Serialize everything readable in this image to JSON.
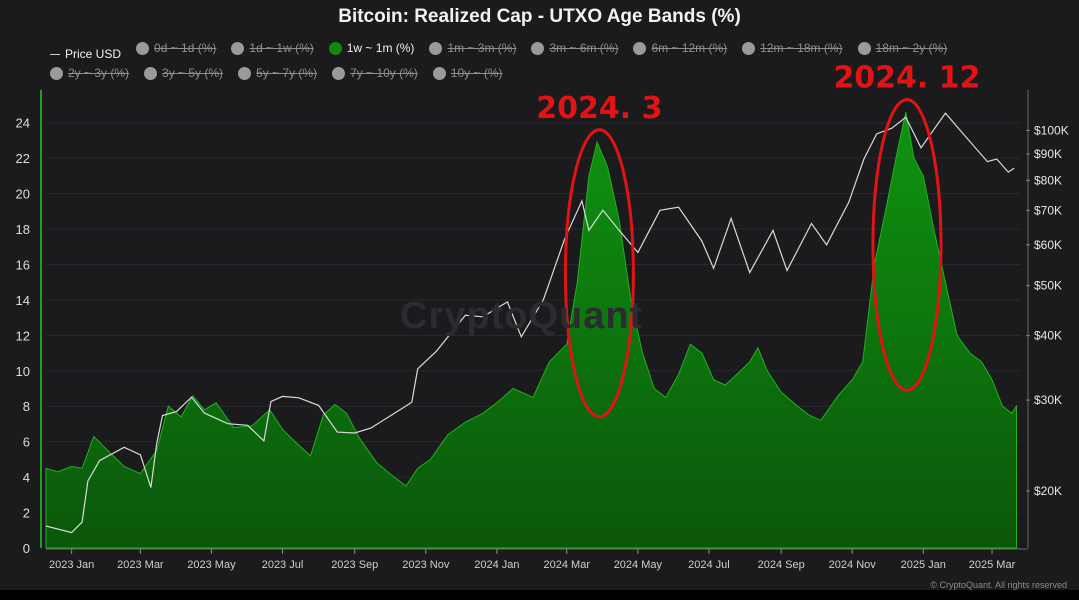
{
  "chart_data": {
    "type": "area",
    "title": "Bitcoin: Realized Cap - UTXO Age Bands (%)",
    "legend": [
      {
        "label": "Price USD",
        "kind": "line",
        "active": true
      },
      {
        "label": "0d ~ 1d (%)",
        "active": false
      },
      {
        "label": "1d ~ 1w (%)",
        "active": false
      },
      {
        "label": "1w ~ 1m (%)",
        "active": true,
        "color": "#0f8a0f"
      },
      {
        "label": "1m ~ 3m (%)",
        "active": false
      },
      {
        "label": "3m ~ 6m (%)",
        "active": false
      },
      {
        "label": "6m ~ 12m (%)",
        "active": false
      },
      {
        "label": "12m ~ 18m (%)",
        "active": false
      },
      {
        "label": "18m ~ 2y (%)",
        "active": false
      },
      {
        "label": "2y ~ 3y (%)",
        "active": false
      },
      {
        "label": "3y ~ 5y (%)",
        "active": false
      },
      {
        "label": "5y ~ 7y (%)",
        "active": false
      },
      {
        "label": "7y ~ 10y (%)",
        "active": false
      },
      {
        "label": "10y ~ (%)",
        "active": false
      }
    ],
    "x_ticks": [
      "2023 Jan",
      "2023 Mar",
      "2023 May",
      "2023 Jul",
      "2023 Sep",
      "2023 Nov",
      "2024 Jan",
      "2024 Mar",
      "2024 May",
      "2024 Jul",
      "2024 Sep",
      "2024 Nov",
      "2025 Jan",
      "2025 Mar"
    ],
    "y_left_ticks": [
      0,
      2,
      4,
      6,
      8,
      10,
      12,
      14,
      16,
      18,
      20,
      22,
      24
    ],
    "y_left_range": [
      0,
      25
    ],
    "y_right_ticks": [
      {
        "label": "$20K",
        "value": 20000
      },
      {
        "label": "$30K",
        "value": 30000
      },
      {
        "label": "$40K",
        "value": 40000
      },
      {
        "label": "$50K",
        "value": 50000
      },
      {
        "label": "$60K",
        "value": 60000
      },
      {
        "label": "$70K",
        "value": 70000
      },
      {
        "label": "$80K",
        "value": 80000
      },
      {
        "label": "$90K",
        "value": 90000
      },
      {
        "label": "$100K",
        "value": 100000
      }
    ],
    "y_right_scale": "log",
    "y_right_range": [
      15500,
      112000
    ],
    "x_range": [
      "2022-12-10",
      "2025-03-25"
    ],
    "series": [
      {
        "name": "1w ~ 1m (%)",
        "color": "#0f8a0f",
        "points": [
          [
            "2022-12-10",
            4.5
          ],
          [
            "2022-12-20",
            4.3
          ],
          [
            "2023-01-01",
            4.6
          ],
          [
            "2023-01-10",
            4.5
          ],
          [
            "2023-01-20",
            6.3
          ],
          [
            "2023-02-01",
            5.5
          ],
          [
            "2023-02-15",
            4.6
          ],
          [
            "2023-03-01",
            4.2
          ],
          [
            "2023-03-15",
            5.5
          ],
          [
            "2023-03-25",
            8.0
          ],
          [
            "2023-04-05",
            7.4
          ],
          [
            "2023-04-15",
            8.6
          ],
          [
            "2023-04-25",
            7.8
          ],
          [
            "2023-05-05",
            8.2
          ],
          [
            "2023-05-20",
            6.8
          ],
          [
            "2023-06-05",
            6.9
          ],
          [
            "2023-06-20",
            7.8
          ],
          [
            "2023-07-01",
            6.7
          ],
          [
            "2023-07-15",
            5.8
          ],
          [
            "2023-07-25",
            5.2
          ],
          [
            "2023-08-05",
            7.5
          ],
          [
            "2023-08-15",
            8.1
          ],
          [
            "2023-08-25",
            7.6
          ],
          [
            "2023-09-05",
            6.2
          ],
          [
            "2023-09-20",
            4.8
          ],
          [
            "2023-10-01",
            4.2
          ],
          [
            "2023-10-15",
            3.5
          ],
          [
            "2023-10-25",
            4.5
          ],
          [
            "2023-11-05",
            5.0
          ],
          [
            "2023-11-20",
            6.4
          ],
          [
            "2023-12-05",
            7.1
          ],
          [
            "2023-12-20",
            7.6
          ],
          [
            "2024-01-01",
            8.2
          ],
          [
            "2024-01-15",
            9.0
          ],
          [
            "2024-02-01",
            8.5
          ],
          [
            "2024-02-15",
            10.5
          ],
          [
            "2024-03-01",
            11.5
          ],
          [
            "2024-03-10",
            15.0
          ],
          [
            "2024-03-20",
            21.0
          ],
          [
            "2024-03-27",
            22.9
          ],
          [
            "2024-04-05",
            21.5
          ],
          [
            "2024-04-15",
            18.5
          ],
          [
            "2024-04-25",
            14.0
          ],
          [
            "2024-05-05",
            11.0
          ],
          [
            "2024-05-15",
            9.0
          ],
          [
            "2024-05-25",
            8.5
          ],
          [
            "2024-06-05",
            9.8
          ],
          [
            "2024-06-15",
            11.5
          ],
          [
            "2024-06-25",
            11.0
          ],
          [
            "2024-07-05",
            9.5
          ],
          [
            "2024-07-15",
            9.2
          ],
          [
            "2024-07-25",
            9.8
          ],
          [
            "2024-08-05",
            10.5
          ],
          [
            "2024-08-12",
            11.3
          ],
          [
            "2024-08-20",
            10.0
          ],
          [
            "2024-09-01",
            8.8
          ],
          [
            "2024-09-15",
            8.0
          ],
          [
            "2024-09-25",
            7.5
          ],
          [
            "2024-10-05",
            7.2
          ],
          [
            "2024-10-20",
            8.6
          ],
          [
            "2024-11-01",
            9.5
          ],
          [
            "2024-11-10",
            10.5
          ],
          [
            "2024-11-20",
            16.0
          ],
          [
            "2024-12-01",
            19.5
          ],
          [
            "2024-12-10",
            22.5
          ],
          [
            "2024-12-17",
            24.6
          ],
          [
            "2024-12-24",
            22.0
          ],
          [
            "2025-01-01",
            21.0
          ],
          [
            "2025-01-10",
            18.0
          ],
          [
            "2025-01-20",
            15.0
          ],
          [
            "2025-01-30",
            12.0
          ],
          [
            "2025-02-10",
            11.0
          ],
          [
            "2025-02-20",
            10.5
          ],
          [
            "2025-03-01",
            9.5
          ],
          [
            "2025-03-10",
            8.0
          ],
          [
            "2025-03-18",
            7.6
          ],
          [
            "2025-03-22",
            8.0
          ]
        ]
      },
      {
        "name": "Price USD",
        "color": "#d9d9d9",
        "points": [
          [
            "2022-12-10",
            17100
          ],
          [
            "2023-01-01",
            16600
          ],
          [
            "2023-01-10",
            17400
          ],
          [
            "2023-01-15",
            20900
          ],
          [
            "2023-01-25",
            22900
          ],
          [
            "2023-02-15",
            24300
          ],
          [
            "2023-03-01",
            23500
          ],
          [
            "2023-03-10",
            20300
          ],
          [
            "2023-03-15",
            24700
          ],
          [
            "2023-03-20",
            28000
          ],
          [
            "2023-04-01",
            28500
          ],
          [
            "2023-04-14",
            30400
          ],
          [
            "2023-04-25",
            28300
          ],
          [
            "2023-05-15",
            27000
          ],
          [
            "2023-06-01",
            26800
          ],
          [
            "2023-06-15",
            25000
          ],
          [
            "2023-06-21",
            29800
          ],
          [
            "2023-07-01",
            30500
          ],
          [
            "2023-07-15",
            30300
          ],
          [
            "2023-08-01",
            29300
          ],
          [
            "2023-08-17",
            26000
          ],
          [
            "2023-09-01",
            25900
          ],
          [
            "2023-09-15",
            26500
          ],
          [
            "2023-10-01",
            27900
          ],
          [
            "2023-10-20",
            29700
          ],
          [
            "2023-10-25",
            34500
          ],
          [
            "2023-11-10",
            37300
          ],
          [
            "2023-12-05",
            43800
          ],
          [
            "2023-12-20",
            43500
          ],
          [
            "2024-01-10",
            46500
          ],
          [
            "2024-01-22",
            39800
          ],
          [
            "2024-02-10",
            47000
          ],
          [
            "2024-02-28",
            61500
          ],
          [
            "2024-03-14",
            73000
          ],
          [
            "2024-03-20",
            64000
          ],
          [
            "2024-04-01",
            70000
          ],
          [
            "2024-04-15",
            64000
          ],
          [
            "2024-05-01",
            58000
          ],
          [
            "2024-05-20",
            70000
          ],
          [
            "2024-06-05",
            71000
          ],
          [
            "2024-06-25",
            61000
          ],
          [
            "2024-07-05",
            54000
          ],
          [
            "2024-07-20",
            67500
          ],
          [
            "2024-08-05",
            53000
          ],
          [
            "2024-08-25",
            64000
          ],
          [
            "2024-09-06",
            53500
          ],
          [
            "2024-09-27",
            66000
          ],
          [
            "2024-10-10",
            60000
          ],
          [
            "2024-10-29",
            72500
          ],
          [
            "2024-11-11",
            88000
          ],
          [
            "2024-11-22",
            98500
          ],
          [
            "2024-12-05",
            101000
          ],
          [
            "2024-12-17",
            106000
          ],
          [
            "2024-12-30",
            92500
          ],
          [
            "2025-01-20",
            108000
          ],
          [
            "2025-02-05",
            98000
          ],
          [
            "2025-02-25",
            87000
          ],
          [
            "2025-03-05",
            88000
          ],
          [
            "2025-03-15",
            83000
          ],
          [
            "2025-03-20",
            84500
          ]
        ]
      }
    ],
    "annotations": [
      {
        "text": "2024. 3",
        "color": "#e01414",
        "center_date": "2024-03-29",
        "top_value": 23.6,
        "bottom_value": 7.4
      },
      {
        "text": "2024. 12",
        "color": "#e01414",
        "center_date": "2024-12-18",
        "top_value": 25.3,
        "bottom_value": 8.9
      }
    ],
    "watermark": "CryptoQuant",
    "copyright": "© CryptoQuant. All rights reserved"
  }
}
